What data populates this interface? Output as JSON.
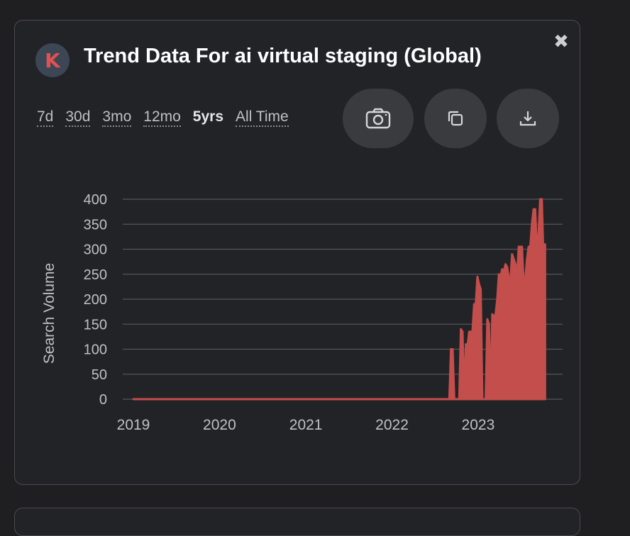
{
  "header": {
    "logo_letter": "K",
    "title": "Trend Data For ai virtual staging (Global)",
    "close_glyph": "✖"
  },
  "ranges": [
    {
      "label": "7d",
      "active": false
    },
    {
      "label": "30d",
      "active": false
    },
    {
      "label": "3mo",
      "active": false
    },
    {
      "label": "12mo",
      "active": false
    },
    {
      "label": "5yrs",
      "active": true
    },
    {
      "label": "All Time",
      "active": false
    }
  ],
  "actions": [
    {
      "icon": "camera-icon"
    },
    {
      "icon": "copy-icon"
    },
    {
      "icon": "download-icon"
    }
  ],
  "colors": {
    "accent": "#c44e4c",
    "grid": "#55565b",
    "axis_text": "#bfc0c5"
  },
  "chart_data": {
    "type": "area",
    "title": "",
    "xlabel": "",
    "ylabel": "Search Volume",
    "ylim": [
      0,
      400
    ],
    "yticks": [
      0,
      50,
      100,
      150,
      200,
      250,
      300,
      350,
      400
    ],
    "xlim": [
      "2019-01-01",
      "2023-12-10"
    ],
    "xticks": [
      "2019",
      "2020",
      "2021",
      "2022",
      "2023"
    ],
    "grid": true,
    "legend": "none",
    "points": [
      [
        "2019-01-01",
        0
      ],
      [
        "2022-09-01",
        0
      ],
      [
        "2022-09-08",
        100
      ],
      [
        "2022-09-15",
        100
      ],
      [
        "2022-09-22",
        0
      ],
      [
        "2022-10-13",
        0
      ],
      [
        "2022-10-20",
        140
      ],
      [
        "2022-10-27",
        135
      ],
      [
        "2022-11-03",
        0
      ],
      [
        "2022-11-10",
        110
      ],
      [
        "2022-11-17",
        105
      ],
      [
        "2022-11-24",
        135
      ],
      [
        "2022-12-01",
        135
      ],
      [
        "2022-12-08",
        135
      ],
      [
        "2022-12-15",
        190
      ],
      [
        "2022-12-22",
        190
      ],
      [
        "2022-12-29",
        245
      ],
      [
        "2023-01-05",
        230
      ],
      [
        "2023-01-12",
        220
      ],
      [
        "2023-01-19",
        0
      ],
      [
        "2023-02-02",
        0
      ],
      [
        "2023-02-09",
        160
      ],
      [
        "2023-02-16",
        150
      ],
      [
        "2023-02-23",
        0
      ],
      [
        "2023-03-02",
        170
      ],
      [
        "2023-03-09",
        165
      ],
      [
        "2023-03-16",
        170
      ],
      [
        "2023-03-23",
        200
      ],
      [
        "2023-03-30",
        250
      ],
      [
        "2023-04-06",
        245
      ],
      [
        "2023-04-13",
        260
      ],
      [
        "2023-04-20",
        255
      ],
      [
        "2023-04-27",
        270
      ],
      [
        "2023-05-04",
        265
      ],
      [
        "2023-05-11",
        240
      ],
      [
        "2023-05-18",
        240
      ],
      [
        "2023-05-25",
        290
      ],
      [
        "2023-06-01",
        280
      ],
      [
        "2023-06-08",
        270
      ],
      [
        "2023-06-15",
        245
      ],
      [
        "2023-06-22",
        305
      ],
      [
        "2023-06-29",
        305
      ],
      [
        "2023-07-06",
        305
      ],
      [
        "2023-07-13",
        230
      ],
      [
        "2023-07-20",
        240
      ],
      [
        "2023-07-27",
        280
      ],
      [
        "2023-08-03",
        305
      ],
      [
        "2023-08-10",
        305
      ],
      [
        "2023-08-17",
        350
      ],
      [
        "2023-08-24",
        380
      ],
      [
        "2023-08-31",
        380
      ],
      [
        "2023-09-07",
        300
      ],
      [
        "2023-09-14",
        330
      ],
      [
        "2023-09-21",
        400
      ],
      [
        "2023-09-28",
        400
      ],
      [
        "2023-10-05",
        280
      ],
      [
        "2023-10-12",
        310
      ]
    ]
  }
}
